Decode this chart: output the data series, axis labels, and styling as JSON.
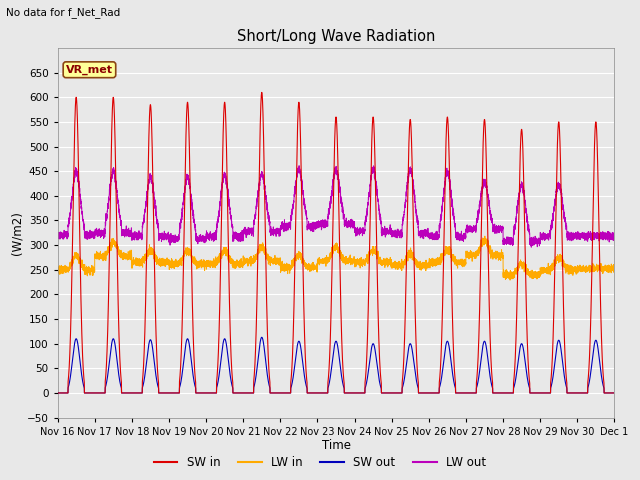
{
  "title": "Short/Long Wave Radiation",
  "xlabel": "Time",
  "ylabel": "(W/m2)",
  "annotation": "No data for f_Net_Rad",
  "station_label": "VR_met",
  "ylim": [
    -50,
    700
  ],
  "yticks": [
    -50,
    0,
    50,
    100,
    150,
    200,
    250,
    300,
    350,
    400,
    450,
    500,
    550,
    600,
    650
  ],
  "fig_bg_color": "#e8e8e8",
  "plot_bg_color": "#e8e8e8",
  "sw_in_color": "#dd0000",
  "lw_in_color": "#ffaa00",
  "sw_out_color": "#0000bb",
  "lw_out_color": "#bb00bb",
  "n_days": 15,
  "start_day": 16,
  "sw_in_peaks": [
    600,
    600,
    585,
    590,
    590,
    610,
    590,
    560,
    560,
    555,
    560,
    555,
    535,
    550,
    550
  ],
  "sw_out_peaks": [
    110,
    110,
    108,
    110,
    110,
    113,
    105,
    105,
    100,
    100,
    105,
    105,
    100,
    107,
    107
  ],
  "lw_in_base": [
    250,
    278,
    265,
    262,
    262,
    268,
    255,
    268,
    265,
    258,
    265,
    280,
    240,
    250,
    252
  ],
  "lw_out_base": [
    320,
    325,
    318,
    313,
    318,
    328,
    338,
    343,
    328,
    323,
    318,
    333,
    308,
    318,
    318
  ],
  "lw_out_peak_add": [
    130,
    125,
    120,
    125,
    125,
    115,
    115,
    110,
    125,
    130,
    130,
    95,
    115,
    105,
    0
  ],
  "lw_in_peak_add": [
    30,
    28,
    25,
    28,
    28,
    28,
    25,
    28,
    26,
    25,
    26,
    30,
    22,
    25,
    0
  ]
}
